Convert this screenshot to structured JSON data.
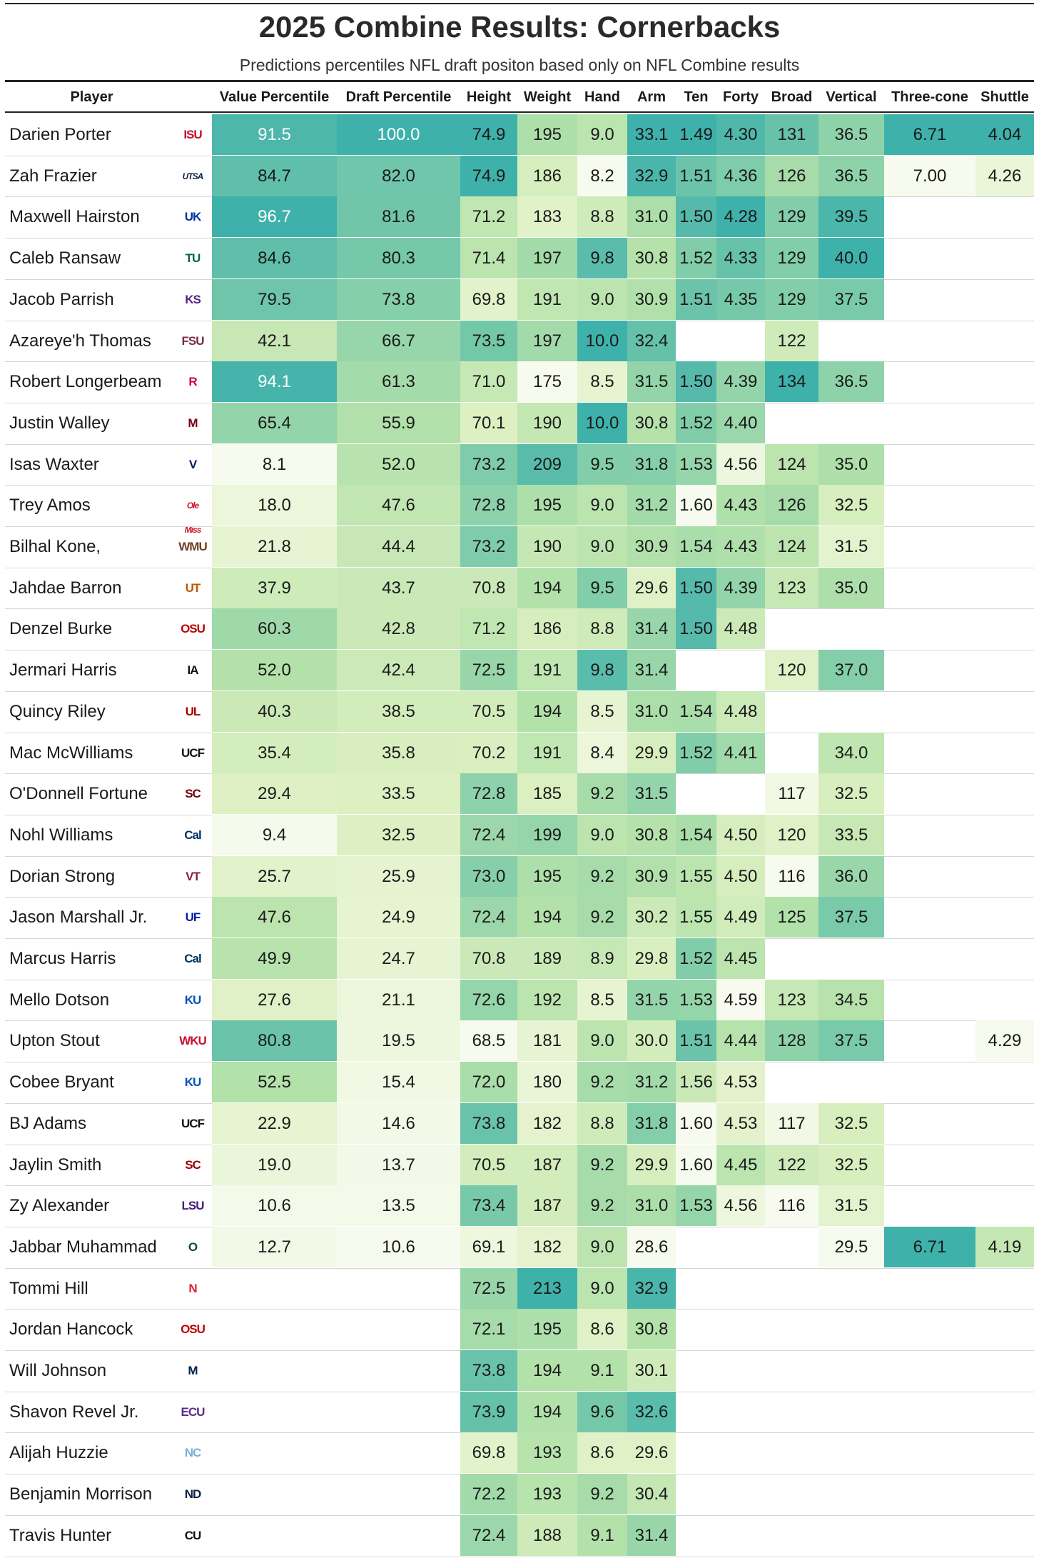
{
  "title": "2025 Combine Results: Cornerbacks",
  "subtitle": "Predictions percentiles NFL draft positon based only on NFL Combine results",
  "columns": [
    "Player",
    "Value Percentile",
    "Draft Percentile",
    "Height",
    "Weight",
    "Hand",
    "Arm",
    "Ten",
    "Forty",
    "Broad",
    "Vertical",
    "Three-cone",
    "Shuttle"
  ],
  "chart_data": {
    "type": "table",
    "title": "2025 Combine Results: Cornerbacks",
    "subtitle": "Predictions percentiles NFL draft positon based only on NFL Combine results",
    "columns": [
      "Player",
      "Value Percentile",
      "Draft Percentile",
      "Height",
      "Weight",
      "Hand",
      "Arm",
      "Ten",
      "Forty",
      "Broad",
      "Vertical",
      "Three-cone",
      "Shuttle"
    ],
    "rows": [
      {
        "player": "Darien Porter",
        "logo": "ISU",
        "logo_color": "#C8102E",
        "values": [
          "91.5",
          "100.0",
          "74.9",
          "195",
          "9.0",
          "33.1",
          "1.49",
          "4.30",
          "131",
          "36.5",
          "6.71",
          "4.04"
        ]
      },
      {
        "player": "Zah Frazier",
        "logo": "UTSA",
        "logo_color": "#0C2340",
        "values": [
          "84.7",
          "82.0",
          "74.9",
          "186",
          "8.2",
          "32.9",
          "1.51",
          "4.36",
          "126",
          "36.5",
          "7.00",
          "4.26"
        ]
      },
      {
        "player": "Maxwell Hairston",
        "logo": "UK",
        "logo_color": "#0033A0",
        "values": [
          "96.7",
          "81.6",
          "71.2",
          "183",
          "8.8",
          "31.0",
          "1.50",
          "4.28",
          "129",
          "39.5",
          "",
          ""
        ]
      },
      {
        "player": "Caleb Ransaw",
        "logo": "TU",
        "logo_color": "#006747",
        "values": [
          "84.6",
          "80.3",
          "71.4",
          "197",
          "9.8",
          "30.8",
          "1.52",
          "4.33",
          "129",
          "40.0",
          "",
          ""
        ]
      },
      {
        "player": "Jacob Parrish",
        "logo": "KS",
        "logo_color": "#512888",
        "values": [
          "79.5",
          "73.8",
          "69.8",
          "191",
          "9.0",
          "30.9",
          "1.51",
          "4.35",
          "129",
          "37.5",
          "",
          ""
        ]
      },
      {
        "player": "Azareye'h Thomas",
        "logo": "FSU",
        "logo_color": "#782F40",
        "values": [
          "42.1",
          "66.7",
          "73.5",
          "197",
          "10.0",
          "32.4",
          "",
          "",
          "122",
          "",
          "",
          ""
        ]
      },
      {
        "player": "Robert Longerbeam",
        "logo": "R",
        "logo_color": "#CC0033",
        "values": [
          "94.1",
          "61.3",
          "71.0",
          "175",
          "8.5",
          "31.5",
          "1.50",
          "4.39",
          "134",
          "36.5",
          "",
          ""
        ]
      },
      {
        "player": "Justin Walley",
        "logo": "M",
        "logo_color": "#7A0019",
        "values": [
          "65.4",
          "55.9",
          "70.1",
          "190",
          "10.0",
          "30.8",
          "1.52",
          "4.40",
          "",
          "",
          "",
          ""
        ]
      },
      {
        "player": "Isas Waxter",
        "logo": "V",
        "logo_color": "#00205B",
        "values": [
          "8.1",
          "52.0",
          "73.2",
          "209",
          "9.5",
          "31.8",
          "1.53",
          "4.56",
          "124",
          "35.0",
          "",
          ""
        ]
      },
      {
        "player": "Trey Amos",
        "logo": "Ole Miss",
        "logo_color": "#CE1126",
        "values": [
          "18.0",
          "47.6",
          "72.8",
          "195",
          "9.0",
          "31.2",
          "1.60",
          "4.43",
          "126",
          "32.5",
          "",
          ""
        ]
      },
      {
        "player": "Bilhal Kone,",
        "logo": "WMU",
        "logo_color": "#6C4023",
        "values": [
          "21.8",
          "44.4",
          "73.2",
          "190",
          "9.0",
          "30.9",
          "1.54",
          "4.43",
          "124",
          "31.5",
          "",
          ""
        ]
      },
      {
        "player": "Jahdae Barron",
        "logo": "UT",
        "logo_color": "#BF5700",
        "values": [
          "37.9",
          "43.7",
          "70.8",
          "194",
          "9.5",
          "29.6",
          "1.50",
          "4.39",
          "123",
          "35.0",
          "",
          ""
        ]
      },
      {
        "player": "Denzel Burke",
        "logo": "OSU",
        "logo_color": "#BB0000",
        "values": [
          "60.3",
          "42.8",
          "71.2",
          "186",
          "8.8",
          "31.4",
          "1.50",
          "4.48",
          "",
          "",
          "",
          ""
        ]
      },
      {
        "player": "Jermari Harris",
        "logo": "IA",
        "logo_color": "#111111",
        "values": [
          "52.0",
          "42.4",
          "72.5",
          "191",
          "9.8",
          "31.4",
          "",
          "",
          "120",
          "37.0",
          "",
          ""
        ]
      },
      {
        "player": "Quincy Riley",
        "logo": "UL",
        "logo_color": "#AD0000",
        "values": [
          "40.3",
          "38.5",
          "70.5",
          "194",
          "8.5",
          "31.0",
          "1.54",
          "4.48",
          "",
          "",
          "",
          ""
        ]
      },
      {
        "player": "Mac McWilliams",
        "logo": "UCF",
        "logo_color": "#111111",
        "values": [
          "35.4",
          "35.8",
          "70.2",
          "191",
          "8.4",
          "29.9",
          "1.52",
          "4.41",
          "",
          "34.0",
          "",
          ""
        ]
      },
      {
        "player": "O'Donnell Fortune",
        "logo": "SC",
        "logo_color": "#73000A",
        "values": [
          "29.4",
          "33.5",
          "72.8",
          "185",
          "9.2",
          "31.5",
          "",
          "",
          "117",
          "32.5",
          "",
          ""
        ]
      },
      {
        "player": "Nohl Williams",
        "logo": "Cal",
        "logo_color": "#003262",
        "values": [
          "9.4",
          "32.5",
          "72.4",
          "199",
          "9.0",
          "30.8",
          "1.54",
          "4.50",
          "120",
          "33.5",
          "",
          ""
        ]
      },
      {
        "player": "Dorian Strong",
        "logo": "VT",
        "logo_color": "#861F41",
        "values": [
          "25.7",
          "25.9",
          "73.0",
          "195",
          "9.2",
          "30.9",
          "1.55",
          "4.50",
          "116",
          "36.0",
          "",
          ""
        ]
      },
      {
        "player": "Jason Marshall Jr.",
        "logo": "UF",
        "logo_color": "#0021A5",
        "values": [
          "47.6",
          "24.9",
          "72.4",
          "194",
          "9.2",
          "30.2",
          "1.55",
          "4.49",
          "125",
          "37.5",
          "",
          ""
        ]
      },
      {
        "player": "Marcus Harris",
        "logo": "Cal",
        "logo_color": "#003262",
        "values": [
          "49.9",
          "24.7",
          "70.8",
          "189",
          "8.9",
          "29.8",
          "1.52",
          "4.45",
          "",
          "",
          "",
          ""
        ]
      },
      {
        "player": "Mello Dotson",
        "logo": "KU",
        "logo_color": "#0051BA",
        "values": [
          "27.6",
          "21.1",
          "72.6",
          "192",
          "8.5",
          "31.5",
          "1.53",
          "4.59",
          "123",
          "34.5",
          "",
          ""
        ]
      },
      {
        "player": "Upton Stout",
        "logo": "WKU",
        "logo_color": "#C8102E",
        "values": [
          "80.8",
          "19.5",
          "68.5",
          "181",
          "9.0",
          "30.0",
          "1.51",
          "4.44",
          "128",
          "37.5",
          "",
          "4.29"
        ]
      },
      {
        "player": "Cobee Bryant",
        "logo": "KU",
        "logo_color": "#0051BA",
        "values": [
          "52.5",
          "15.4",
          "72.0",
          "180",
          "9.2",
          "31.2",
          "1.56",
          "4.53",
          "",
          "",
          "",
          ""
        ]
      },
      {
        "player": "BJ Adams",
        "logo": "UCF",
        "logo_color": "#111111",
        "values": [
          "22.9",
          "14.6",
          "73.8",
          "182",
          "8.8",
          "31.8",
          "1.60",
          "4.53",
          "117",
          "32.5",
          "",
          ""
        ]
      },
      {
        "player": "Jaylin Smith",
        "logo": "SC",
        "logo_color": "#990000",
        "values": [
          "19.0",
          "13.7",
          "70.5",
          "187",
          "9.2",
          "29.9",
          "1.60",
          "4.45",
          "122",
          "32.5",
          "",
          ""
        ]
      },
      {
        "player": "Zy Alexander",
        "logo": "LSU",
        "logo_color": "#461D7C",
        "values": [
          "10.6",
          "13.5",
          "73.4",
          "187",
          "9.2",
          "31.0",
          "1.53",
          "4.56",
          "116",
          "31.5",
          "",
          ""
        ]
      },
      {
        "player": "Jabbar Muhammad",
        "logo": "O",
        "logo_color": "#154733",
        "values": [
          "12.7",
          "10.6",
          "69.1",
          "182",
          "9.0",
          "28.6",
          "",
          "",
          "",
          "29.5",
          "6.71",
          "4.19"
        ]
      },
      {
        "player": "Tommi Hill",
        "logo": "N",
        "logo_color": "#E41C38",
        "values": [
          "",
          "",
          "72.5",
          "213",
          "9.0",
          "32.9",
          "",
          "",
          "",
          "",
          "",
          ""
        ]
      },
      {
        "player": "Jordan Hancock",
        "logo": "OSU",
        "logo_color": "#BB0000",
        "values": [
          "",
          "",
          "72.1",
          "195",
          "8.6",
          "30.8",
          "",
          "",
          "",
          "",
          "",
          ""
        ]
      },
      {
        "player": "Will Johnson",
        "logo": "M",
        "logo_color": "#00274C",
        "values": [
          "",
          "",
          "73.8",
          "194",
          "9.1",
          "30.1",
          "",
          "",
          "",
          "",
          "",
          ""
        ]
      },
      {
        "player": "Shavon Revel Jr.",
        "logo": "ECU",
        "logo_color": "#592A8A",
        "values": [
          "",
          "",
          "73.9",
          "194",
          "9.6",
          "32.6",
          "",
          "",
          "",
          "",
          "",
          ""
        ]
      },
      {
        "player": "Alijah Huzzie",
        "logo": "NC",
        "logo_color": "#7BAFD4",
        "values": [
          "",
          "",
          "69.8",
          "193",
          "8.6",
          "29.6",
          "",
          "",
          "",
          "",
          "",
          ""
        ]
      },
      {
        "player": "Benjamin Morrison",
        "logo": "ND",
        "logo_color": "#0C2340",
        "values": [
          "",
          "",
          "72.2",
          "193",
          "9.2",
          "30.4",
          "",
          "",
          "",
          "",
          "",
          ""
        ]
      },
      {
        "player": "Travis Hunter",
        "logo": "CU",
        "logo_color": "#111111",
        "values": [
          "",
          "",
          "72.4",
          "188",
          "9.1",
          "31.4",
          "",
          "",
          "",
          "",
          "",
          ""
        ]
      }
    ],
    "color_scale": [
      "#f7fbef",
      "#ddf0c2",
      "#b3e1aa",
      "#7ccbaa",
      "#3fb1ab"
    ]
  }
}
